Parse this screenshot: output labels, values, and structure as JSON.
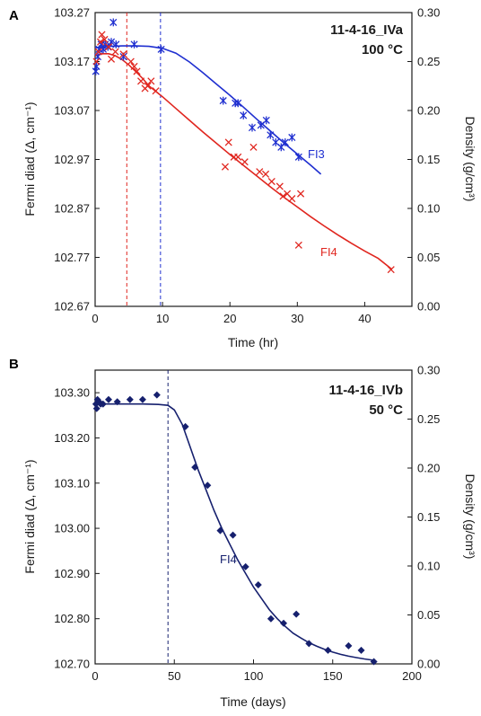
{
  "colors": {
    "FI3": "#1f2fd0",
    "FI4_A": "#e0261f",
    "FI4_B": "#16206e",
    "axis": "#1a1a1a"
  },
  "chart_data": [
    {
      "panel": "A",
      "type": "scatter",
      "title": "",
      "sample_label": "11-4-16_IVa",
      "temperature_label": "100 °C",
      "xlabel": "Time (hr)",
      "ylabel_left": "Fermi diad (Δ, cm⁻¹)",
      "ylabel_right": "Density (g/cm³)",
      "xlim": [
        0,
        47
      ],
      "ylim_left": [
        102.67,
        103.27
      ],
      "ylim_right": [
        0,
        0.3
      ],
      "x_ticks": [
        0,
        10,
        20,
        30,
        40
      ],
      "x_tick_labels": [
        "0",
        "10",
        "20",
        "30",
        "40"
      ],
      "y_left_ticks": [
        102.67,
        102.77,
        102.87,
        102.97,
        103.07,
        103.17,
        103.27
      ],
      "y_left_tick_labels": [
        "102.67",
        "102.77",
        "102.87",
        "102.97",
        "103.07",
        "103.17",
        "103.27"
      ],
      "y_right_ticks": [
        0,
        0.05,
        0.1,
        0.15,
        0.2,
        0.25,
        0.3
      ],
      "y_right_tick_labels": [
        "0.00",
        "0.05",
        "0.10",
        "0.15",
        "0.20",
        "0.25",
        "0.30"
      ],
      "vertical_lines": [
        {
          "x": 4.7,
          "series": "FI4"
        },
        {
          "x": 9.7,
          "series": "FI3"
        }
      ],
      "series": [
        {
          "name": "FI3",
          "marker": "asterisk",
          "points": [
            [
              0.1,
              103.15
            ],
            [
              0.2,
              103.16
            ],
            [
              0.4,
              103.18
            ],
            [
              0.6,
              103.195
            ],
            [
              0.9,
              103.205
            ],
            [
              1.2,
              103.195
            ],
            [
              1.5,
              103.205
            ],
            [
              1.9,
              103.2
            ],
            [
              2.4,
              103.21
            ],
            [
              2.7,
              103.25
            ],
            [
              3.1,
              103.205
            ],
            [
              4.2,
              103.18
            ],
            [
              5.8,
              103.205
            ],
            [
              9.8,
              103.195
            ],
            [
              19.0,
              103.09
            ],
            [
              20.8,
              103.085
            ],
            [
              21.2,
              103.085
            ],
            [
              22.0,
              103.06
            ],
            [
              23.3,
              103.035
            ],
            [
              24.6,
              103.04
            ],
            [
              25.4,
              103.05
            ],
            [
              26.0,
              103.02
            ],
            [
              26.8,
              103.005
            ],
            [
              27.6,
              102.995
            ],
            [
              28.2,
              103.005
            ],
            [
              29.2,
              103.015
            ],
            [
              30.2,
              102.975
            ]
          ],
          "fit": [
            [
              0,
              103.198
            ],
            [
              2,
              103.201
            ],
            [
              4,
              103.202
            ],
            [
              6,
              103.202
            ],
            [
              8,
              103.201
            ],
            [
              10,
              103.197
            ],
            [
              12,
              103.187
            ],
            [
              14,
              103.169
            ],
            [
              16,
              103.147
            ],
            [
              18,
              103.124
            ],
            [
              20,
              103.101
            ],
            [
              22,
              103.077
            ],
            [
              24,
              103.052
            ],
            [
              26,
              103.028
            ],
            [
              28,
              103.004
            ],
            [
              30,
              102.981
            ],
            [
              32,
              102.958
            ],
            [
              33.5,
              102.94
            ]
          ]
        },
        {
          "name": "FI4",
          "marker": "x",
          "points": [
            [
              0.2,
              103.17
            ],
            [
              0.5,
              103.19
            ],
            [
              0.8,
              103.21
            ],
            [
              1.0,
              103.225
            ],
            [
              1.4,
              103.215
            ],
            [
              2.0,
              103.2
            ],
            [
              2.4,
              103.175
            ],
            [
              3.0,
              103.19
            ],
            [
              4.2,
              103.185
            ],
            [
              5.3,
              103.17
            ],
            [
              5.8,
              103.16
            ],
            [
              6.2,
              103.15
            ],
            [
              6.8,
              103.13
            ],
            [
              7.4,
              103.115
            ],
            [
              7.8,
              103.12
            ],
            [
              8.3,
              103.13
            ],
            [
              9.0,
              103.11
            ],
            [
              19.3,
              102.955
            ],
            [
              19.8,
              103.005
            ],
            [
              20.6,
              102.975
            ],
            [
              21.2,
              102.975
            ],
            [
              22.2,
              102.965
            ],
            [
              23.5,
              102.995
            ],
            [
              24.4,
              102.945
            ],
            [
              25.3,
              102.94
            ],
            [
              26.2,
              102.925
            ],
            [
              27.4,
              102.915
            ],
            [
              27.9,
              102.895
            ],
            [
              28.5,
              102.9
            ],
            [
              29.2,
              102.89
            ],
            [
              30.2,
              102.795
            ],
            [
              30.5,
              102.9
            ],
            [
              43.9,
              102.745
            ]
          ],
          "fit": [
            [
              0,
              103.182
            ],
            [
              1,
              103.186
            ],
            [
              2,
              103.186
            ],
            [
              3,
              103.182
            ],
            [
              4,
              103.174
            ],
            [
              5,
              103.163
            ],
            [
              6,
              103.15
            ],
            [
              7,
              103.136
            ],
            [
              8,
              103.12
            ],
            [
              10,
              103.098
            ],
            [
              12,
              103.074
            ],
            [
              14,
              103.05
            ],
            [
              16,
              103.026
            ],
            [
              18,
              103.003
            ],
            [
              20,
              102.98
            ],
            [
              22,
              102.958
            ],
            [
              24,
              102.936
            ],
            [
              26,
              102.914
            ],
            [
              28,
              102.893
            ],
            [
              30,
              102.873
            ],
            [
              32,
              102.853
            ],
            [
              34,
              102.834
            ],
            [
              36,
              102.816
            ],
            [
              38,
              102.799
            ],
            [
              40,
              102.783
            ],
            [
              42,
              102.768
            ],
            [
              44,
              102.746
            ]
          ]
        }
      ]
    },
    {
      "panel": "B",
      "type": "scatter",
      "title": "",
      "sample_label": "11-4-16_IVb",
      "temperature_label": "50 °C",
      "xlabel": "Time (days)",
      "ylabel_left": "Fermi diad (Δ, cm⁻¹)",
      "ylabel_right": "Density (g/cm³)",
      "xlim": [
        0,
        200
      ],
      "ylim_left": [
        102.7,
        103.35
      ],
      "ylim_right": [
        0,
        0.3
      ],
      "x_ticks": [
        0,
        50,
        100,
        150,
        200
      ],
      "x_tick_labels": [
        "0",
        "50",
        "100",
        "150",
        "200"
      ],
      "y_left_ticks": [
        102.7,
        102.8,
        102.9,
        103.0,
        103.1,
        103.2,
        103.3
      ],
      "y_left_tick_labels": [
        "102.70",
        "102.80",
        "102.90",
        "103.00",
        "103.10",
        "103.20",
        "103.30"
      ],
      "y_right_ticks": [
        0,
        0.05,
        0.1,
        0.15,
        0.2,
        0.25,
        0.3
      ],
      "y_right_tick_labels": [
        "0.00",
        "0.05",
        "0.10",
        "0.15",
        "0.20",
        "0.25",
        "0.30"
      ],
      "vertical_lines": [
        {
          "x": 46,
          "series": "FI4"
        }
      ],
      "series": [
        {
          "name": "FI4",
          "marker": "diamond",
          "points": [
            [
              0.5,
              103.275
            ],
            [
              1.0,
              103.265
            ],
            [
              1.5,
              103.285
            ],
            [
              2.5,
              103.28
            ],
            [
              3.5,
              103.275
            ],
            [
              5.0,
              103.275
            ],
            [
              8.5,
              103.285
            ],
            [
              14,
              103.28
            ],
            [
              22,
              103.285
            ],
            [
              30,
              103.285
            ],
            [
              39,
              103.295
            ],
            [
              57,
              103.225
            ],
            [
              63,
              103.135
            ],
            [
              71,
              103.095
            ],
            [
              79,
              102.995
            ],
            [
              87,
              102.985
            ],
            [
              95,
              102.915
            ],
            [
              103,
              102.875
            ],
            [
              111,
              102.8
            ],
            [
              119,
              102.79
            ],
            [
              127,
              102.81
            ],
            [
              135,
              102.745
            ],
            [
              147,
              102.73
            ],
            [
              160,
              102.74
            ],
            [
              168,
              102.73
            ],
            [
              176,
              102.705
            ]
          ],
          "fit": [
            [
              0,
              103.275
            ],
            [
              10,
              103.275
            ],
            [
              20,
              103.275
            ],
            [
              30,
              103.275
            ],
            [
              40,
              103.274
            ],
            [
              46,
              103.272
            ],
            [
              50,
              103.262
            ],
            [
              55,
              103.23
            ],
            [
              60,
              103.18
            ],
            [
              65,
              103.13
            ],
            [
              70,
              103.085
            ],
            [
              75,
              103.04
            ],
            [
              80,
              103.0
            ],
            [
              85,
              102.965
            ],
            [
              90,
              102.93
            ],
            [
              95,
              102.9
            ],
            [
              100,
              102.87
            ],
            [
              105,
              102.845
            ],
            [
              110,
              102.82
            ],
            [
              115,
              102.8
            ],
            [
              120,
              102.783
            ],
            [
              125,
              102.768
            ],
            [
              130,
              102.757
            ],
            [
              135,
              102.747
            ],
            [
              140,
              102.739
            ],
            [
              145,
              102.732
            ],
            [
              150,
              102.726
            ],
            [
              155,
              102.721
            ],
            [
              160,
              102.717
            ],
            [
              165,
              102.714
            ],
            [
              170,
              102.711
            ],
            [
              176,
              102.708
            ]
          ]
        }
      ]
    }
  ]
}
